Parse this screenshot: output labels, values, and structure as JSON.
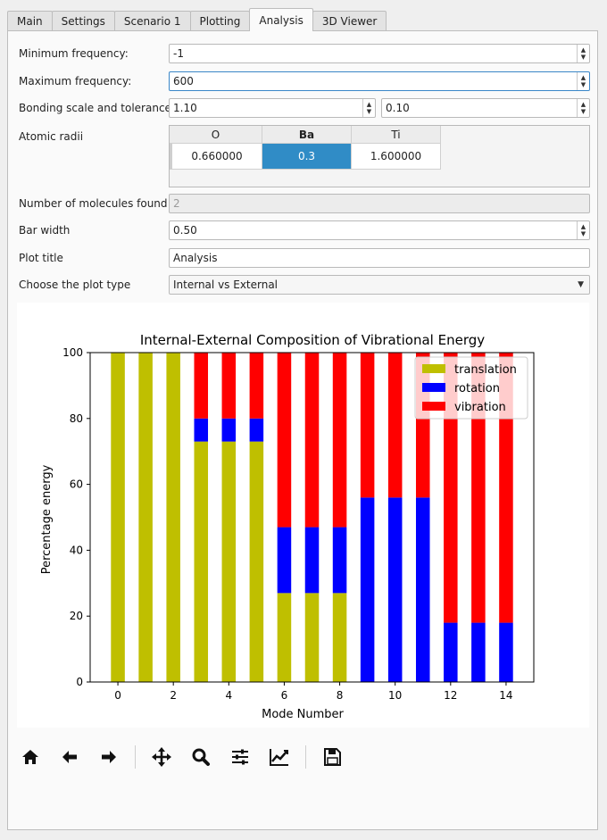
{
  "tabs": [
    {
      "label": "Main",
      "active": false
    },
    {
      "label": "Settings",
      "active": false
    },
    {
      "label": "Scenario 1",
      "active": false
    },
    {
      "label": "Plotting",
      "active": false
    },
    {
      "label": "Analysis",
      "active": true
    },
    {
      "label": "3D Viewer",
      "active": false
    }
  ],
  "form": {
    "min_freq_label": "Minimum frequency:",
    "min_freq_value": "-1",
    "max_freq_label": "Maximum frequency:",
    "max_freq_value": "600",
    "bonding_label": "Bonding scale and tolerance",
    "bonding_scale": "1.10",
    "bonding_tolerance": "0.10",
    "atomic_radii_label": "Atomic radii",
    "atomic_radii": {
      "headers": [
        "O",
        "Ba",
        "Ti"
      ],
      "values": [
        "0.660000",
        "0.3",
        "1.600000"
      ],
      "selected_index": 1
    },
    "molecules_label": "Number of molecules found",
    "molecules_value": "2",
    "bar_width_label": "Bar width",
    "bar_width_value": "0.50",
    "plot_title_label": "Plot title",
    "plot_title_value": "Analysis",
    "plot_type_label": "Choose the plot type",
    "plot_type_value": "Internal vs External"
  },
  "chart_data": {
    "type": "bar",
    "title": "Internal-External Composition of Vibrational Energy",
    "xlabel": "Mode Number",
    "ylabel": "Percentage energy",
    "ylim": [
      0,
      100
    ],
    "xlim": [
      -1,
      15
    ],
    "xticks": [
      0,
      2,
      4,
      6,
      8,
      10,
      12,
      14
    ],
    "yticks": [
      0,
      20,
      40,
      60,
      80,
      100
    ],
    "x": [
      0,
      1,
      2,
      3,
      4,
      5,
      6,
      7,
      8,
      9,
      10,
      11,
      12,
      13,
      14
    ],
    "bar_width": 0.5,
    "legend_position": "top-right",
    "series": [
      {
        "name": "translation",
        "color": "#bfbf00",
        "values": [
          100,
          100,
          100,
          73,
          73,
          73,
          27,
          27,
          27,
          0,
          0,
          0,
          0,
          0,
          0
        ]
      },
      {
        "name": "rotation",
        "color": "#0000ff",
        "values": [
          0,
          0,
          0,
          7,
          7,
          7,
          20,
          20,
          20,
          56,
          56,
          56,
          18,
          18,
          18
        ]
      },
      {
        "name": "vibration",
        "color": "#ff0000",
        "values": [
          0,
          0,
          0,
          20,
          20,
          20,
          53,
          53,
          53,
          44,
          44,
          44,
          82,
          82,
          82
        ]
      }
    ]
  },
  "toolbar": {
    "buttons": [
      "home-icon",
      "back-arrow-icon",
      "forward-arrow-icon",
      "pan-icon",
      "zoom-icon",
      "configure-subplots-icon",
      "edit-axis-icon",
      "save-icon"
    ]
  }
}
